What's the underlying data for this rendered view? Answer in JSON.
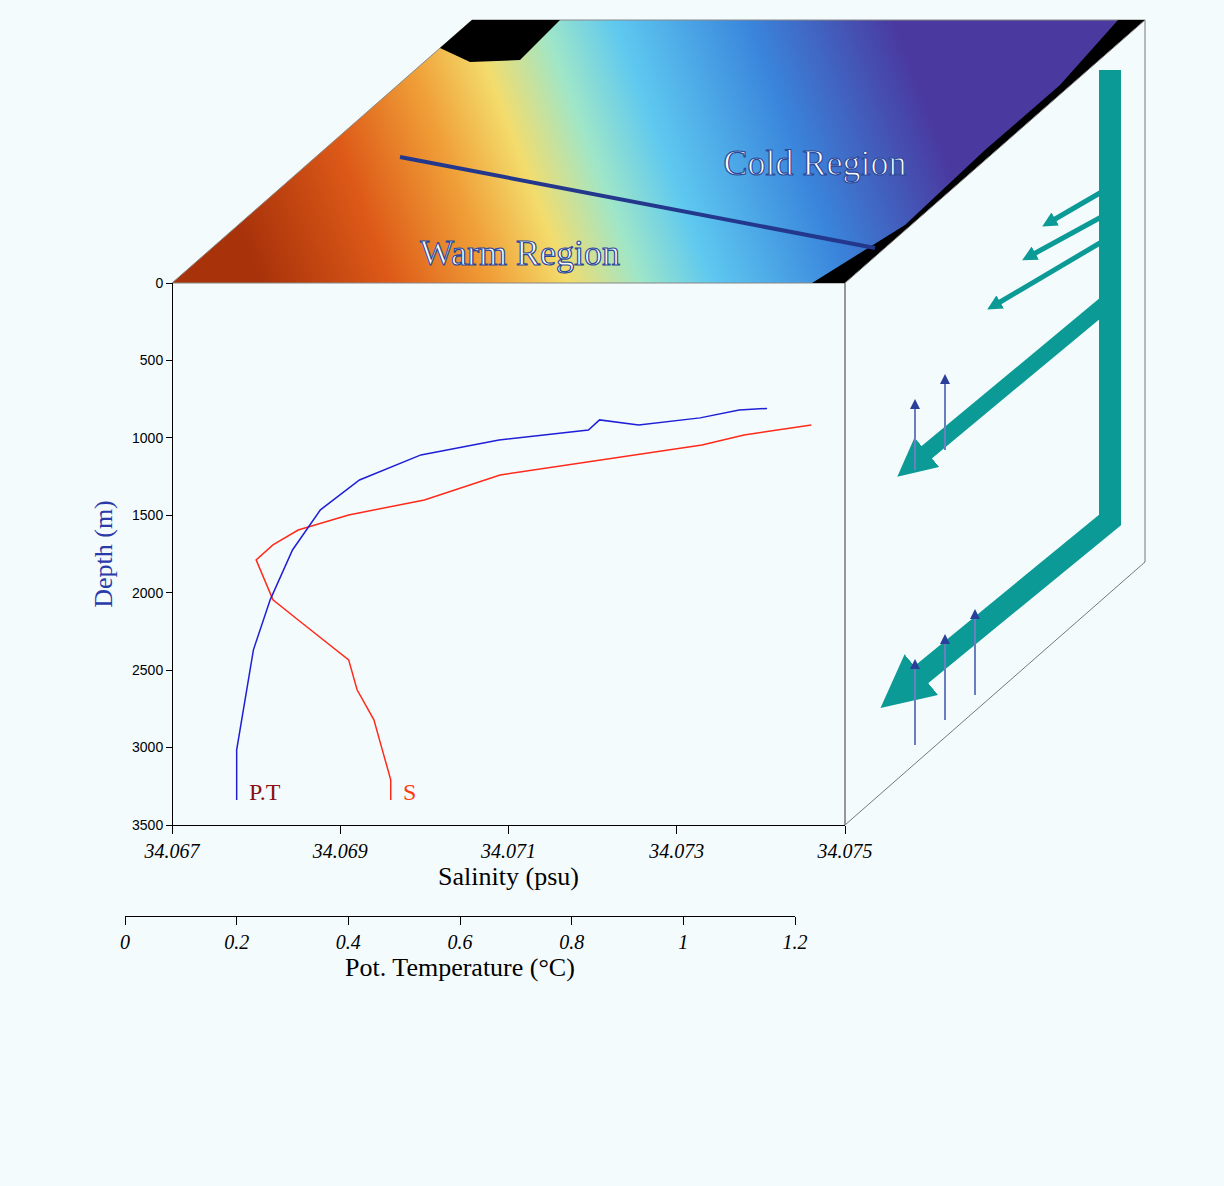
{
  "chart_data": {
    "type": "line",
    "annotations": [
      "Cold Region",
      "Warm Region"
    ],
    "y_label": "Depth (m)",
    "x_label": "Salinity (psu)",
    "x2_label": "Pot. Temperature (°C)",
    "ylim": [
      3500,
      0
    ],
    "yticks": [
      0,
      500,
      1000,
      1500,
      2000,
      2500,
      3000,
      3500
    ],
    "xlim": [
      34.067,
      34.075
    ],
    "xticks": [
      34.067,
      34.069,
      34.071,
      34.073,
      34.075
    ],
    "x2lim": [
      0,
      1.2
    ],
    "x2ticks": [
      0,
      0.2,
      0.4,
      0.6,
      0.8,
      1,
      1.2
    ],
    "grid": false,
    "series": [
      {
        "name": "P.T",
        "color": "#1f1fd6",
        "axis": "x2",
        "x": [
          1.15,
          1.1,
          1.03,
          0.92,
          0.85,
          0.83,
          0.67,
          0.53,
          0.42,
          0.35,
          0.3,
          0.26,
          0.23,
          0.215,
          0.2,
          0.2
        ],
        "y": [
          810,
          820,
          871,
          917,
          884,
          949,
          1014,
          1110,
          1272,
          1465,
          1724,
          2046,
          2369,
          2692,
          3015,
          3338
        ]
      },
      {
        "name": "S",
        "color": "#ff2a1a",
        "x": [
          34.0746,
          34.0738,
          34.0733,
          34.0721,
          34.0709,
          34.07,
          34.0691,
          34.0685,
          34.0682,
          34.068,
          34.0681,
          34.0682,
          34.0685,
          34.0688,
          34.0691,
          34.0692,
          34.0694,
          34.0695,
          34.0696,
          34.0696
        ],
        "y": [
          917,
          981,
          1046,
          1143,
          1240,
          1401,
          1498,
          1595,
          1691,
          1788,
          1917,
          2046,
          2176,
          2305,
          2434,
          2627,
          2821,
          3015,
          3208,
          3338
        ]
      }
    ]
  }
}
